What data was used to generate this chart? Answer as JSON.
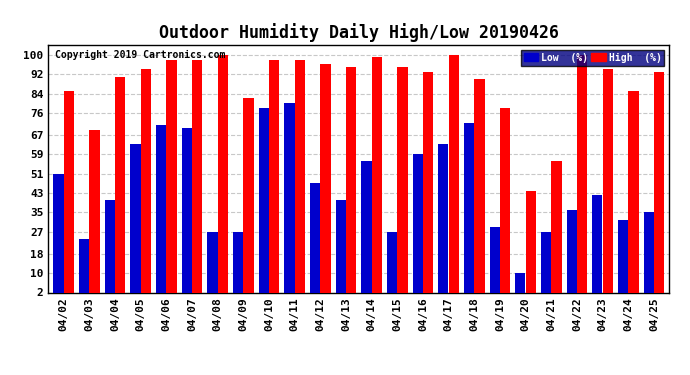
{
  "title": "Outdoor Humidity Daily High/Low 20190426",
  "copyright": "Copyright 2019 Cartronics.com",
  "categories": [
    "04/02",
    "04/03",
    "04/04",
    "04/05",
    "04/06",
    "04/07",
    "04/08",
    "04/09",
    "04/10",
    "04/11",
    "04/12",
    "04/13",
    "04/14",
    "04/15",
    "04/16",
    "04/17",
    "04/18",
    "04/19",
    "04/20",
    "04/21",
    "04/22",
    "04/23",
    "04/24",
    "04/25"
  ],
  "high": [
    85,
    69,
    91,
    94,
    98,
    98,
    100,
    82,
    98,
    98,
    96,
    95,
    99,
    95,
    93,
    100,
    90,
    78,
    44,
    56,
    100,
    94,
    85,
    93
  ],
  "low": [
    51,
    24,
    40,
    63,
    71,
    70,
    27,
    27,
    78,
    80,
    47,
    40,
    56,
    27,
    59,
    63,
    72,
    29,
    10,
    27,
    36,
    42,
    32,
    35
  ],
  "high_color": "#ff0000",
  "low_color": "#0000cc",
  "bg_color": "#ffffff",
  "grid_color": "#c8c8c8",
  "yticks": [
    2,
    10,
    18,
    27,
    35,
    43,
    51,
    59,
    67,
    76,
    84,
    92,
    100
  ],
  "ymin": 2,
  "ymax": 104,
  "title_fontsize": 12,
  "tick_fontsize": 8,
  "legend_low_label": "Low  (%)",
  "legend_high_label": "High  (%)"
}
